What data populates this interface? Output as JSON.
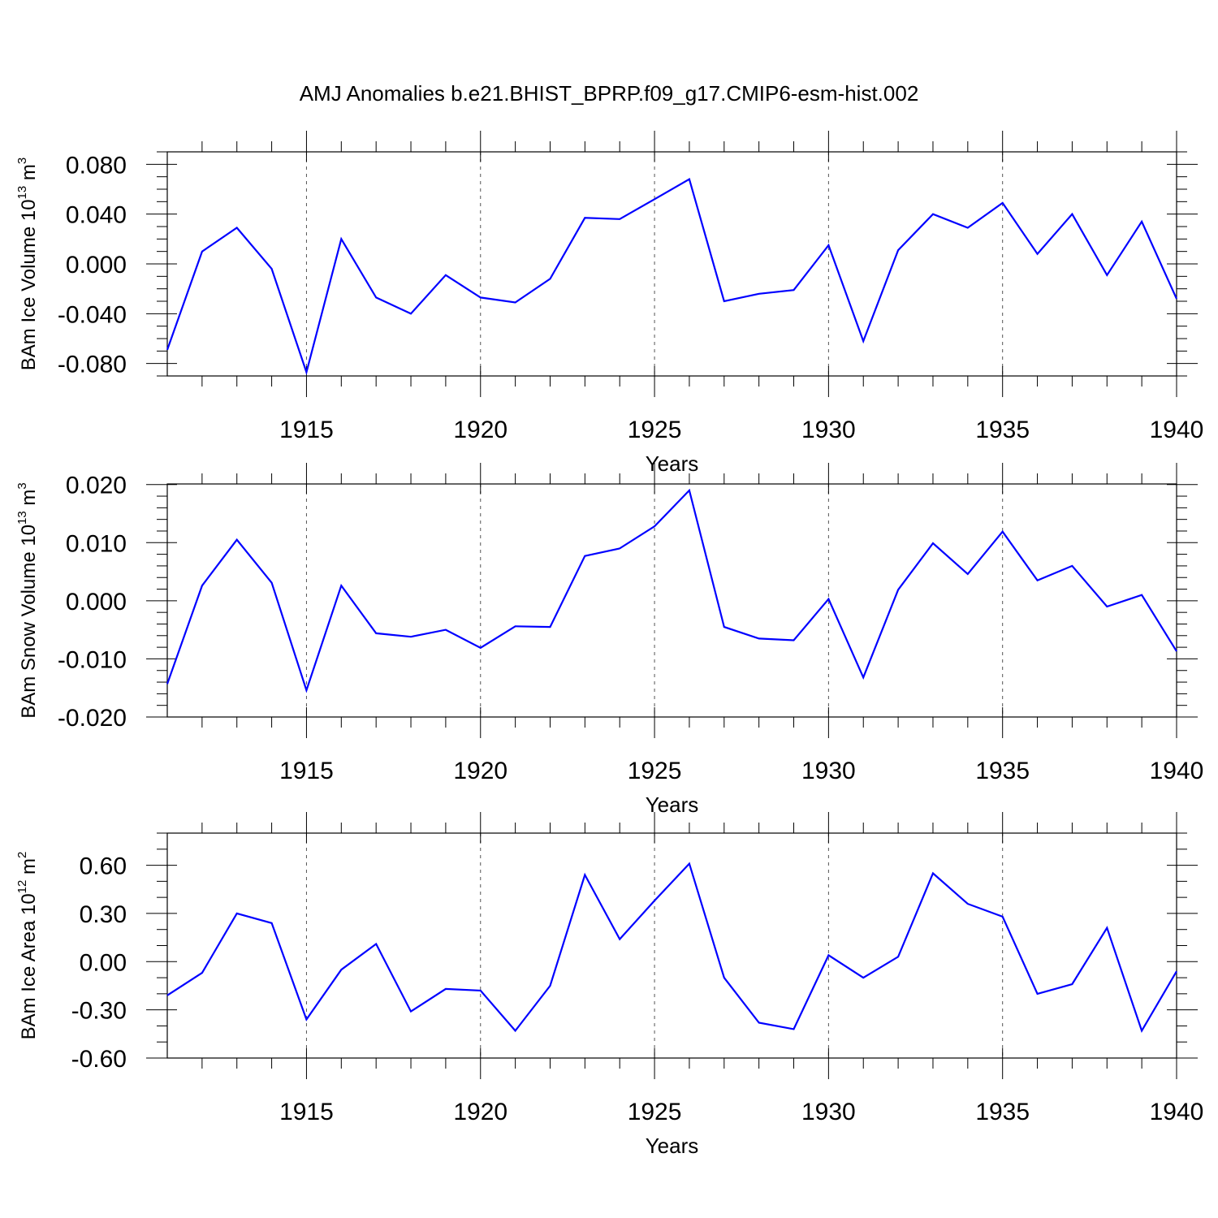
{
  "figure_title": "AMJ Anomalies b.e21.BHIST_BPRP.f09_g17.CMIP6-esm-hist.002",
  "colors": {
    "line": "#0000ff",
    "grid": "#555555",
    "axes": "#000000"
  },
  "chart_data": [
    {
      "type": "line",
      "xlabel": "Years",
      "ylabel": {
        "prefix": "BAm Ice Volume 10",
        "exp": "13",
        "unit": " m",
        "unit_exp": "3"
      },
      "xlim": [
        1911,
        1940
      ],
      "ylim": [
        -0.09,
        0.09
      ],
      "x_ticks": [
        "1915",
        "1920",
        "1925",
        "1930",
        "1935",
        "1940"
      ],
      "y_tick_values": [
        -0.08,
        -0.04,
        0.0,
        0.04,
        0.08
      ],
      "y_ticks": [
        "-0.080",
        "-0.040",
        "0.000",
        "0.040",
        "0.080"
      ],
      "y_minor_step": 0.01,
      "x": [
        1911,
        1912,
        1913,
        1914,
        1915,
        1916,
        1917,
        1918,
        1919,
        1920,
        1921,
        1922,
        1923,
        1924,
        1925,
        1926,
        1927,
        1928,
        1929,
        1930,
        1931,
        1932,
        1933,
        1934,
        1935,
        1936,
        1937,
        1938,
        1939,
        1940
      ],
      "values": [
        -0.069,
        0.01,
        0.029,
        -0.004,
        -0.087,
        0.02,
        -0.027,
        -0.04,
        -0.009,
        -0.027,
        -0.031,
        -0.012,
        0.037,
        0.036,
        0.052,
        0.068,
        -0.03,
        -0.024,
        -0.021,
        0.015,
        -0.062,
        0.011,
        0.04,
        0.029,
        0.049,
        0.008,
        0.04,
        -0.009,
        0.034,
        -0.028
      ]
    },
    {
      "type": "line",
      "xlabel": "Years",
      "ylabel": {
        "prefix": "BAm Snow Volume 10",
        "exp": "13",
        "unit": " m",
        "unit_exp": "3"
      },
      "xlim": [
        1911,
        1940
      ],
      "ylim": [
        -0.02,
        0.0201
      ],
      "x_ticks": [
        "1915",
        "1920",
        "1925",
        "1930",
        "1935",
        "1940"
      ],
      "y_tick_values": [
        -0.02,
        -0.01,
        0.0,
        0.01,
        0.02
      ],
      "y_ticks": [
        "-0.020",
        "-0.010",
        "0.000",
        "0.010",
        "0.020"
      ],
      "y_minor_step": 0.002,
      "x": [
        1911,
        1912,
        1913,
        1914,
        1915,
        1916,
        1917,
        1918,
        1919,
        1920,
        1921,
        1922,
        1923,
        1924,
        1925,
        1926,
        1927,
        1928,
        1929,
        1930,
        1931,
        1932,
        1933,
        1934,
        1935,
        1936,
        1937,
        1938,
        1939,
        1940
      ],
      "values": [
        -0.0143,
        0.0026,
        0.0105,
        0.0031,
        -0.0154,
        0.0026,
        -0.0056,
        -0.0062,
        -0.005,
        -0.0081,
        -0.0044,
        -0.0045,
        0.0077,
        0.009,
        0.0128,
        0.019,
        -0.0045,
        -0.0065,
        -0.0068,
        0.0003,
        -0.0132,
        0.0019,
        0.0099,
        0.0046,
        0.0119,
        0.0035,
        0.006,
        -0.001,
        0.001,
        -0.0087
      ]
    },
    {
      "type": "line",
      "xlabel": "Years",
      "ylabel": {
        "prefix": "BAm Ice Area 10",
        "exp": "12",
        "unit": " m",
        "unit_exp": "2"
      },
      "xlim": [
        1911,
        1940
      ],
      "ylim": [
        -0.6,
        0.8
      ],
      "x_ticks": [
        "1915",
        "1920",
        "1925",
        "1930",
        "1935",
        "1940"
      ],
      "y_tick_values": [
        -0.6,
        -0.3,
        0.0,
        0.3,
        0.6
      ],
      "y_ticks": [
        "-0.60",
        "-0.30",
        "0.00",
        "0.30",
        "0.60"
      ],
      "y_minor_step": 0.1,
      "x": [
        1911,
        1912,
        1913,
        1914,
        1915,
        1916,
        1917,
        1918,
        1919,
        1920,
        1921,
        1922,
        1923,
        1924,
        1925,
        1926,
        1927,
        1928,
        1929,
        1930,
        1931,
        1932,
        1933,
        1934,
        1935,
        1936,
        1937,
        1938,
        1939,
        1940
      ],
      "values": [
        -0.21,
        -0.07,
        0.3,
        0.24,
        -0.36,
        -0.05,
        0.11,
        -0.31,
        -0.17,
        -0.18,
        -0.43,
        -0.15,
        0.54,
        0.14,
        0.38,
        0.61,
        -0.1,
        -0.38,
        -0.42,
        0.04,
        -0.1,
        0.03,
        0.55,
        0.36,
        0.28,
        -0.2,
        -0.14,
        0.21,
        -0.43,
        -0.06
      ]
    }
  ]
}
